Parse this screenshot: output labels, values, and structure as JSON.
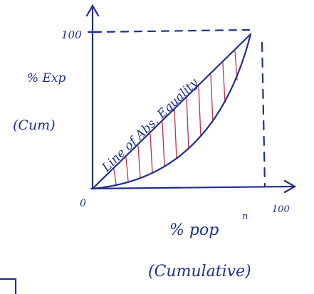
{
  "diagram": {
    "y_axis": {
      "max_label": "100",
      "label_line1": "% Exp",
      "label_line2": "(Cum)"
    },
    "origin_label": "0",
    "x_axis": {
      "label": "% pop",
      "superscript": "n",
      "max_label": "100",
      "label_line2": "(Cumulative)"
    },
    "diagonal_label": "Line of Abs. Equality"
  }
}
